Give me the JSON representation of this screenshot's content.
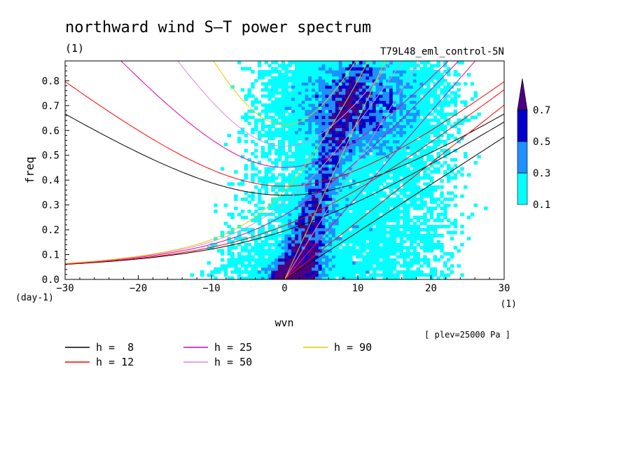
{
  "chart_data": {
    "type": "heatmap",
    "title": "northward wind S–T power spectrum",
    "subtitle_left": "(1)",
    "subtitle_right": "T79L48_eml_control-5N",
    "xlabel": "wvn",
    "ylabel": "freq",
    "xunit": "(1)",
    "yunit": "(day-1)",
    "annotation": "[ plev=25000 Pa ]",
    "xlim": [
      -30,
      30
    ],
    "ylim": [
      0,
      0.88
    ],
    "xticks": [
      -30,
      -20,
      -10,
      0,
      10,
      20,
      30
    ],
    "xtick_labels": [
      "−30",
      "−20",
      "−10",
      "0",
      "10",
      "20",
      "30"
    ],
    "yticks": [
      0,
      0.1,
      0.2,
      0.3,
      0.4,
      0.5,
      0.6,
      0.7,
      0.8
    ],
    "ytick_labels": [
      "0.0",
      "0.1",
      "0.2",
      "0.3",
      "0.4",
      "0.5",
      "0.6",
      "0.7",
      "0.8"
    ],
    "contour_levels": [
      0.1,
      0.3,
      0.5,
      0.7
    ],
    "colorbar_labels": [
      "0.1",
      "0.3",
      "0.5",
      "0.7"
    ],
    "fill_colors": [
      "#00ffff",
      "#1e90ff",
      "#0000cd",
      "#4b0082"
    ],
    "dispersion_curves": [
      {
        "label": "h =  8",
        "h": 8,
        "color": "#000000"
      },
      {
        "label": "h = 12",
        "h": 12,
        "color": "#ff0000"
      },
      {
        "label": "h = 25",
        "h": 25,
        "color": "#e600a0"
      },
      {
        "label": "h = 50",
        "h": 50,
        "color": "#dd88dd"
      },
      {
        "label": "h = 90",
        "h": 90,
        "color": "#e6c800"
      }
    ],
    "grid": false,
    "legend_placement": "bottom"
  }
}
